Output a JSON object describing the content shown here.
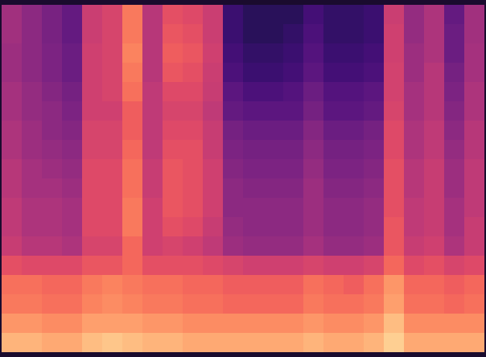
{
  "chart_data": {
    "type": "heatmap",
    "color": "magma",
    "tick_labels": false,
    "zlim": [
      0,
      100
    ],
    "cells": [
      [
        45,
        40,
        35,
        30,
        55,
        58,
        72,
        50,
        62,
        60,
        55,
        20,
        16,
        16,
        16,
        22,
        18,
        18,
        20,
        55,
        42,
        48,
        30,
        45
      ],
      [
        45,
        40,
        35,
        30,
        55,
        58,
        72,
        50,
        64,
        62,
        55,
        20,
        16,
        16,
        18,
        24,
        18,
        18,
        20,
        56,
        42,
        48,
        32,
        45
      ],
      [
        44,
        40,
        36,
        32,
        56,
        58,
        74,
        50,
        66,
        64,
        56,
        22,
        18,
        18,
        20,
        26,
        20,
        20,
        22,
        56,
        44,
        48,
        32,
        46
      ],
      [
        44,
        40,
        36,
        32,
        56,
        58,
        72,
        50,
        64,
        62,
        55,
        24,
        20,
        20,
        22,
        28,
        22,
        22,
        24,
        57,
        44,
        50,
        34,
        46
      ],
      [
        46,
        42,
        38,
        34,
        56,
        58,
        70,
        52,
        60,
        60,
        54,
        28,
        24,
        24,
        26,
        32,
        26,
        26,
        28,
        57,
        46,
        50,
        36,
        48
      ],
      [
        46,
        42,
        40,
        36,
        56,
        56,
        66,
        52,
        58,
        58,
        52,
        30,
        28,
        28,
        28,
        34,
        28,
        28,
        30,
        58,
        46,
        50,
        38,
        48
      ],
      [
        48,
        44,
        40,
        38,
        58,
        58,
        66,
        52,
        60,
        60,
        54,
        34,
        32,
        32,
        32,
        38,
        32,
        32,
        34,
        60,
        48,
        52,
        40,
        50
      ],
      [
        48,
        44,
        42,
        40,
        58,
        58,
        68,
        52,
        62,
        62,
        54,
        36,
        34,
        34,
        34,
        40,
        34,
        34,
        36,
        60,
        48,
        52,
        42,
        50
      ],
      [
        50,
        46,
        44,
        42,
        60,
        60,
        70,
        54,
        64,
        62,
        56,
        38,
        36,
        36,
        36,
        42,
        36,
        36,
        38,
        62,
        50,
        54,
        44,
        52
      ],
      [
        50,
        46,
        46,
        44,
        60,
        60,
        70,
        54,
        64,
        62,
        56,
        40,
        38,
        38,
        38,
        44,
        38,
        38,
        40,
        62,
        50,
        54,
        44,
        52
      ],
      [
        52,
        48,
        48,
        46,
        60,
        60,
        72,
        56,
        64,
        62,
        56,
        40,
        40,
        40,
        40,
        44,
        40,
        40,
        42,
        62,
        52,
        54,
        46,
        52
      ],
      [
        52,
        48,
        48,
        46,
        60,
        60,
        72,
        56,
        62,
        60,
        54,
        42,
        40,
        40,
        40,
        44,
        40,
        40,
        42,
        64,
        52,
        54,
        46,
        54
      ],
      [
        54,
        50,
        50,
        48,
        58,
        58,
        68,
        56,
        58,
        56,
        52,
        44,
        42,
        42,
        42,
        46,
        42,
        42,
        44,
        64,
        54,
        56,
        48,
        54
      ],
      [
        62,
        60,
        60,
        60,
        64,
        64,
        68,
        62,
        62,
        62,
        60,
        58,
        56,
        56,
        56,
        58,
        56,
        56,
        58,
        68,
        60,
        62,
        58,
        60
      ],
      [
        70,
        70,
        68,
        68,
        72,
        74,
        72,
        70,
        70,
        68,
        68,
        66,
        66,
        66,
        66,
        70,
        68,
        66,
        70,
        78,
        68,
        68,
        66,
        68
      ],
      [
        72,
        72,
        70,
        70,
        74,
        76,
        74,
        72,
        72,
        70,
        70,
        68,
        68,
        68,
        68,
        72,
        70,
        70,
        72,
        80,
        70,
        70,
        68,
        70
      ],
      [
        78,
        78,
        76,
        76,
        80,
        80,
        80,
        78,
        78,
        76,
        76,
        76,
        76,
        76,
        76,
        78,
        76,
        76,
        78,
        86,
        76,
        76,
        76,
        76
      ],
      [
        84,
        84,
        82,
        82,
        86,
        88,
        86,
        84,
        84,
        82,
        82,
        82,
        82,
        82,
        82,
        84,
        82,
        82,
        84,
        90,
        82,
        82,
        82,
        82
      ]
    ]
  }
}
